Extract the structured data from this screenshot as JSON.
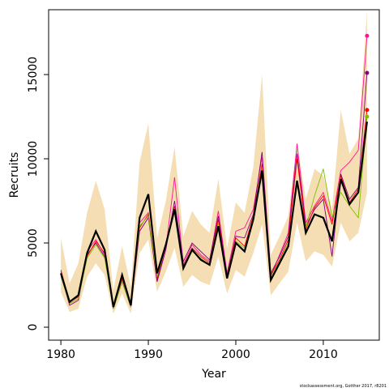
{
  "chart_data": {
    "type": "line",
    "xlabel": "Year",
    "ylabel": "Recruits",
    "footnote": "stockassessment.org, Gotther 2017, r8201",
    "x": [
      1980,
      1981,
      1982,
      1983,
      1984,
      1985,
      1986,
      1987,
      1988,
      1989,
      1990,
      1991,
      1992,
      1993,
      1994,
      1995,
      1996,
      1997,
      1998,
      1999,
      2000,
      2001,
      2002,
      2003,
      2004,
      2005,
      2006,
      2007,
      2008,
      2009,
      2010,
      2011,
      2012,
      2013,
      2014,
      2015
    ],
    "xlim": [
      1978.6,
      2016.4
    ],
    "xticks": [
      1980,
      1990,
      2000,
      2010
    ],
    "ylim": [
      -770,
      18850
    ],
    "yticks": [
      0,
      5000,
      10000,
      15000
    ],
    "band": {
      "color": "#f5deb3",
      "upper": [
        5300,
        2600,
        3800,
        6800,
        8700,
        7000,
        2200,
        4800,
        2400,
        9800,
        12100,
        5300,
        7500,
        10700,
        5400,
        6900,
        6100,
        5600,
        8800,
        4700,
        7400,
        6800,
        9500,
        15000,
        4300,
        5400,
        6600,
        11000,
        7600,
        9400,
        9000,
        7000,
        12900,
        10300,
        11200,
        18800
      ],
      "lower": [
        2100,
        900,
        1100,
        3000,
        3800,
        3100,
        800,
        2000,
        800,
        4400,
        5200,
        2100,
        3300,
        4700,
        2400,
        3100,
        2700,
        2500,
        4200,
        2000,
        3400,
        3000,
        4400,
        6100,
        1900,
        2600,
        3300,
        6200,
        3900,
        4500,
        4300,
        3600,
        6200,
        5100,
        5600,
        8000
      ]
    },
    "series": [
      {
        "color": "#ff1493",
        "values": [
          3300,
          1400,
          1700,
          4500,
          5200,
          4300,
          1100,
          2800,
          1200,
          6200,
          6800,
          2800,
          4700,
          8900,
          3700,
          4900,
          4300,
          3900,
          6900,
          3200,
          5700,
          5900,
          7000,
          10100,
          3000,
          4300,
          5600,
          10900,
          6200,
          7200,
          8000,
          6300,
          9300,
          9800,
          10500,
          17300
        ]
      },
      {
        "color": "#800080",
        "values": [
          3100,
          1300,
          1600,
          4300,
          5000,
          4200,
          1100,
          2700,
          1200,
          5700,
          6500,
          2700,
          4600,
          7500,
          3900,
          5000,
          4500,
          4000,
          6600,
          3100,
          5400,
          5300,
          6700,
          10400,
          3200,
          4200,
          5400,
          10300,
          6000,
          7000,
          7600,
          4200,
          9100,
          7600,
          8300,
          15100
        ]
      },
      {
        "color": "#ff0000",
        "values": [
          3400,
          1500,
          1800,
          4200,
          5100,
          4400,
          1200,
          2900,
          1300,
          5900,
          6700,
          2900,
          4800,
          7200,
          3600,
          4700,
          4200,
          3800,
          6400,
          3000,
          5300,
          4800,
          6600,
          9700,
          3100,
          4000,
          5200,
          10000,
          5800,
          7100,
          7800,
          6100,
          9000,
          7400,
          8200,
          12900
        ]
      },
      {
        "color": "#7fbf00",
        "values": [
          3000,
          1400,
          1700,
          4100,
          4900,
          4100,
          1100,
          2700,
          1200,
          6000,
          6600,
          3000,
          4800,
          7000,
          3500,
          4500,
          4100,
          3700,
          6200,
          3000,
          5100,
          4700,
          6300,
          9500,
          3000,
          3900,
          5000,
          8500,
          5900,
          7800,
          9400,
          6500,
          8000,
          7200,
          6500,
          12500
        ]
      },
      {
        "color": "#000000",
        "values": [
          3200,
          1500,
          1900,
          4400,
          5700,
          4600,
          1200,
          3100,
          1300,
          6500,
          7900,
          3200,
          4900,
          7000,
          3500,
          4600,
          4000,
          3700,
          6000,
          2900,
          5000,
          4500,
          6400,
          9300,
          2800,
          3800,
          4800,
          8700,
          5600,
          6700,
          6500,
          5100,
          8800,
          7300,
          8000,
          12200
        ]
      }
    ]
  }
}
